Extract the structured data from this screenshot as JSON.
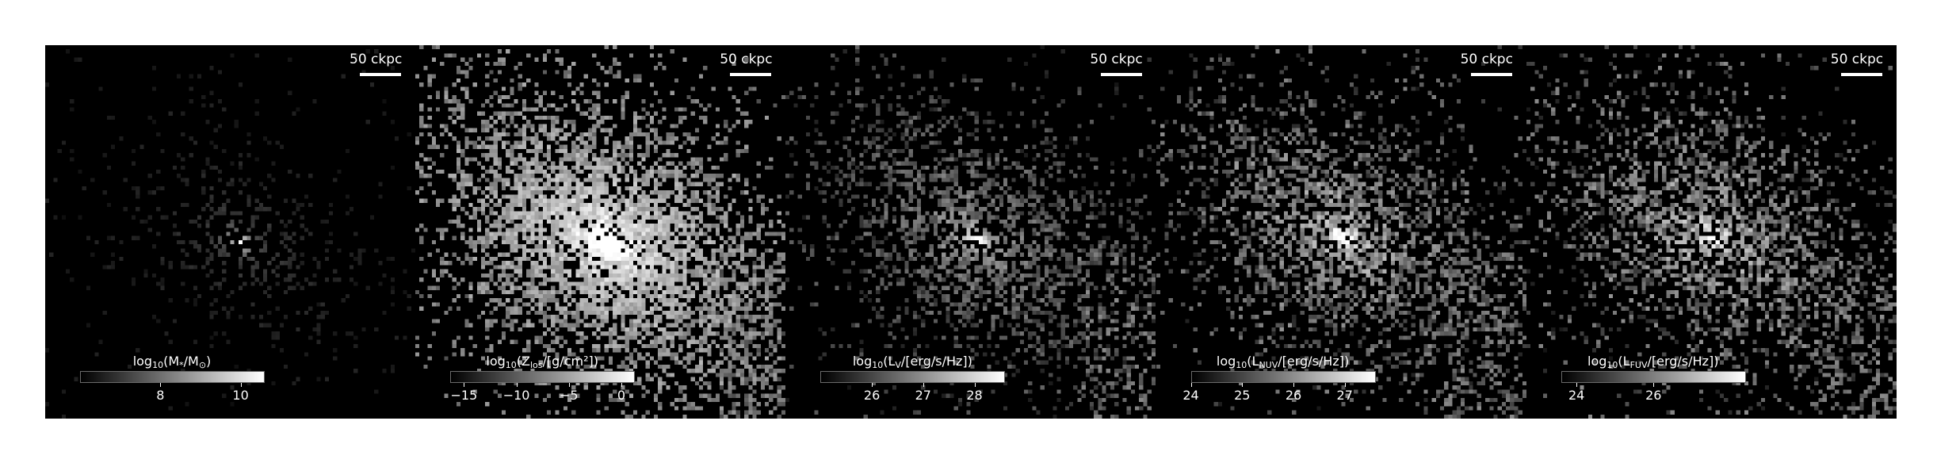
{
  "figure": {
    "scalebar_label": "50 ckpc",
    "panels": [
      {
        "quantity": "stellar-mass",
        "title_prefix": "log",
        "title_sub_base": "10",
        "title_body": "(M",
        "title_sub_2": "*",
        "title_suffix": "/M",
        "title_sub_3": "⊙",
        "title_end": ")",
        "ticks": [
          {
            "value": 8,
            "label": "8"
          },
          {
            "value": 10,
            "label": "10"
          }
        ],
        "cbar_range": [
          6,
          10.6
        ]
      },
      {
        "quantity": "metallicity",
        "title_prefix": "log",
        "title_sub_base": "10",
        "title_body": "(Z",
        "title_sub_2": "los",
        "title_suffix": "/[g/cm²])",
        "title_sub_3": "",
        "title_end": "",
        "ticks": [
          {
            "value": -15,
            "label": "−15"
          },
          {
            "value": -10,
            "label": "−10"
          },
          {
            "value": -5,
            "label": "−5"
          },
          {
            "value": 0,
            "label": "0"
          }
        ],
        "cbar_range": [
          -16.3,
          1.3
        ]
      },
      {
        "quantity": "v-band-luminosity",
        "title_prefix": "log",
        "title_sub_base": "10",
        "title_body": "(L",
        "title_sub_2": "V",
        "title_suffix": "/[erg/s/Hz])",
        "title_sub_3": "",
        "title_end": "",
        "ticks": [
          {
            "value": 26,
            "label": "26"
          },
          {
            "value": 27,
            "label": "27"
          },
          {
            "value": 28,
            "label": "28"
          }
        ],
        "cbar_range": [
          25.0,
          28.6
        ]
      },
      {
        "quantity": "nuv-luminosity",
        "title_prefix": "log",
        "title_sub_base": "10",
        "title_body": "(L",
        "title_sub_2": "NUV",
        "title_suffix": "/[erg/s/Hz])",
        "title_sub_3": "",
        "title_end": "",
        "ticks": [
          {
            "value": 24,
            "label": "24"
          },
          {
            "value": 25,
            "label": "25"
          },
          {
            "value": 26,
            "label": "26"
          },
          {
            "value": 27,
            "label": "27"
          }
        ],
        "cbar_range": [
          24,
          27.6
        ]
      },
      {
        "quantity": "fuv-luminosity",
        "title_prefix": "log",
        "title_sub_base": "10",
        "title_body": "(L",
        "title_sub_2": "FUV",
        "title_suffix": "/[erg/s/Hz])",
        "title_sub_3": "",
        "title_end": "",
        "ticks": [
          {
            "value": 24,
            "label": "24"
          },
          {
            "value": 26,
            "label": "26"
          }
        ],
        "cbar_range": [
          23.6,
          28.4
        ]
      }
    ]
  }
}
